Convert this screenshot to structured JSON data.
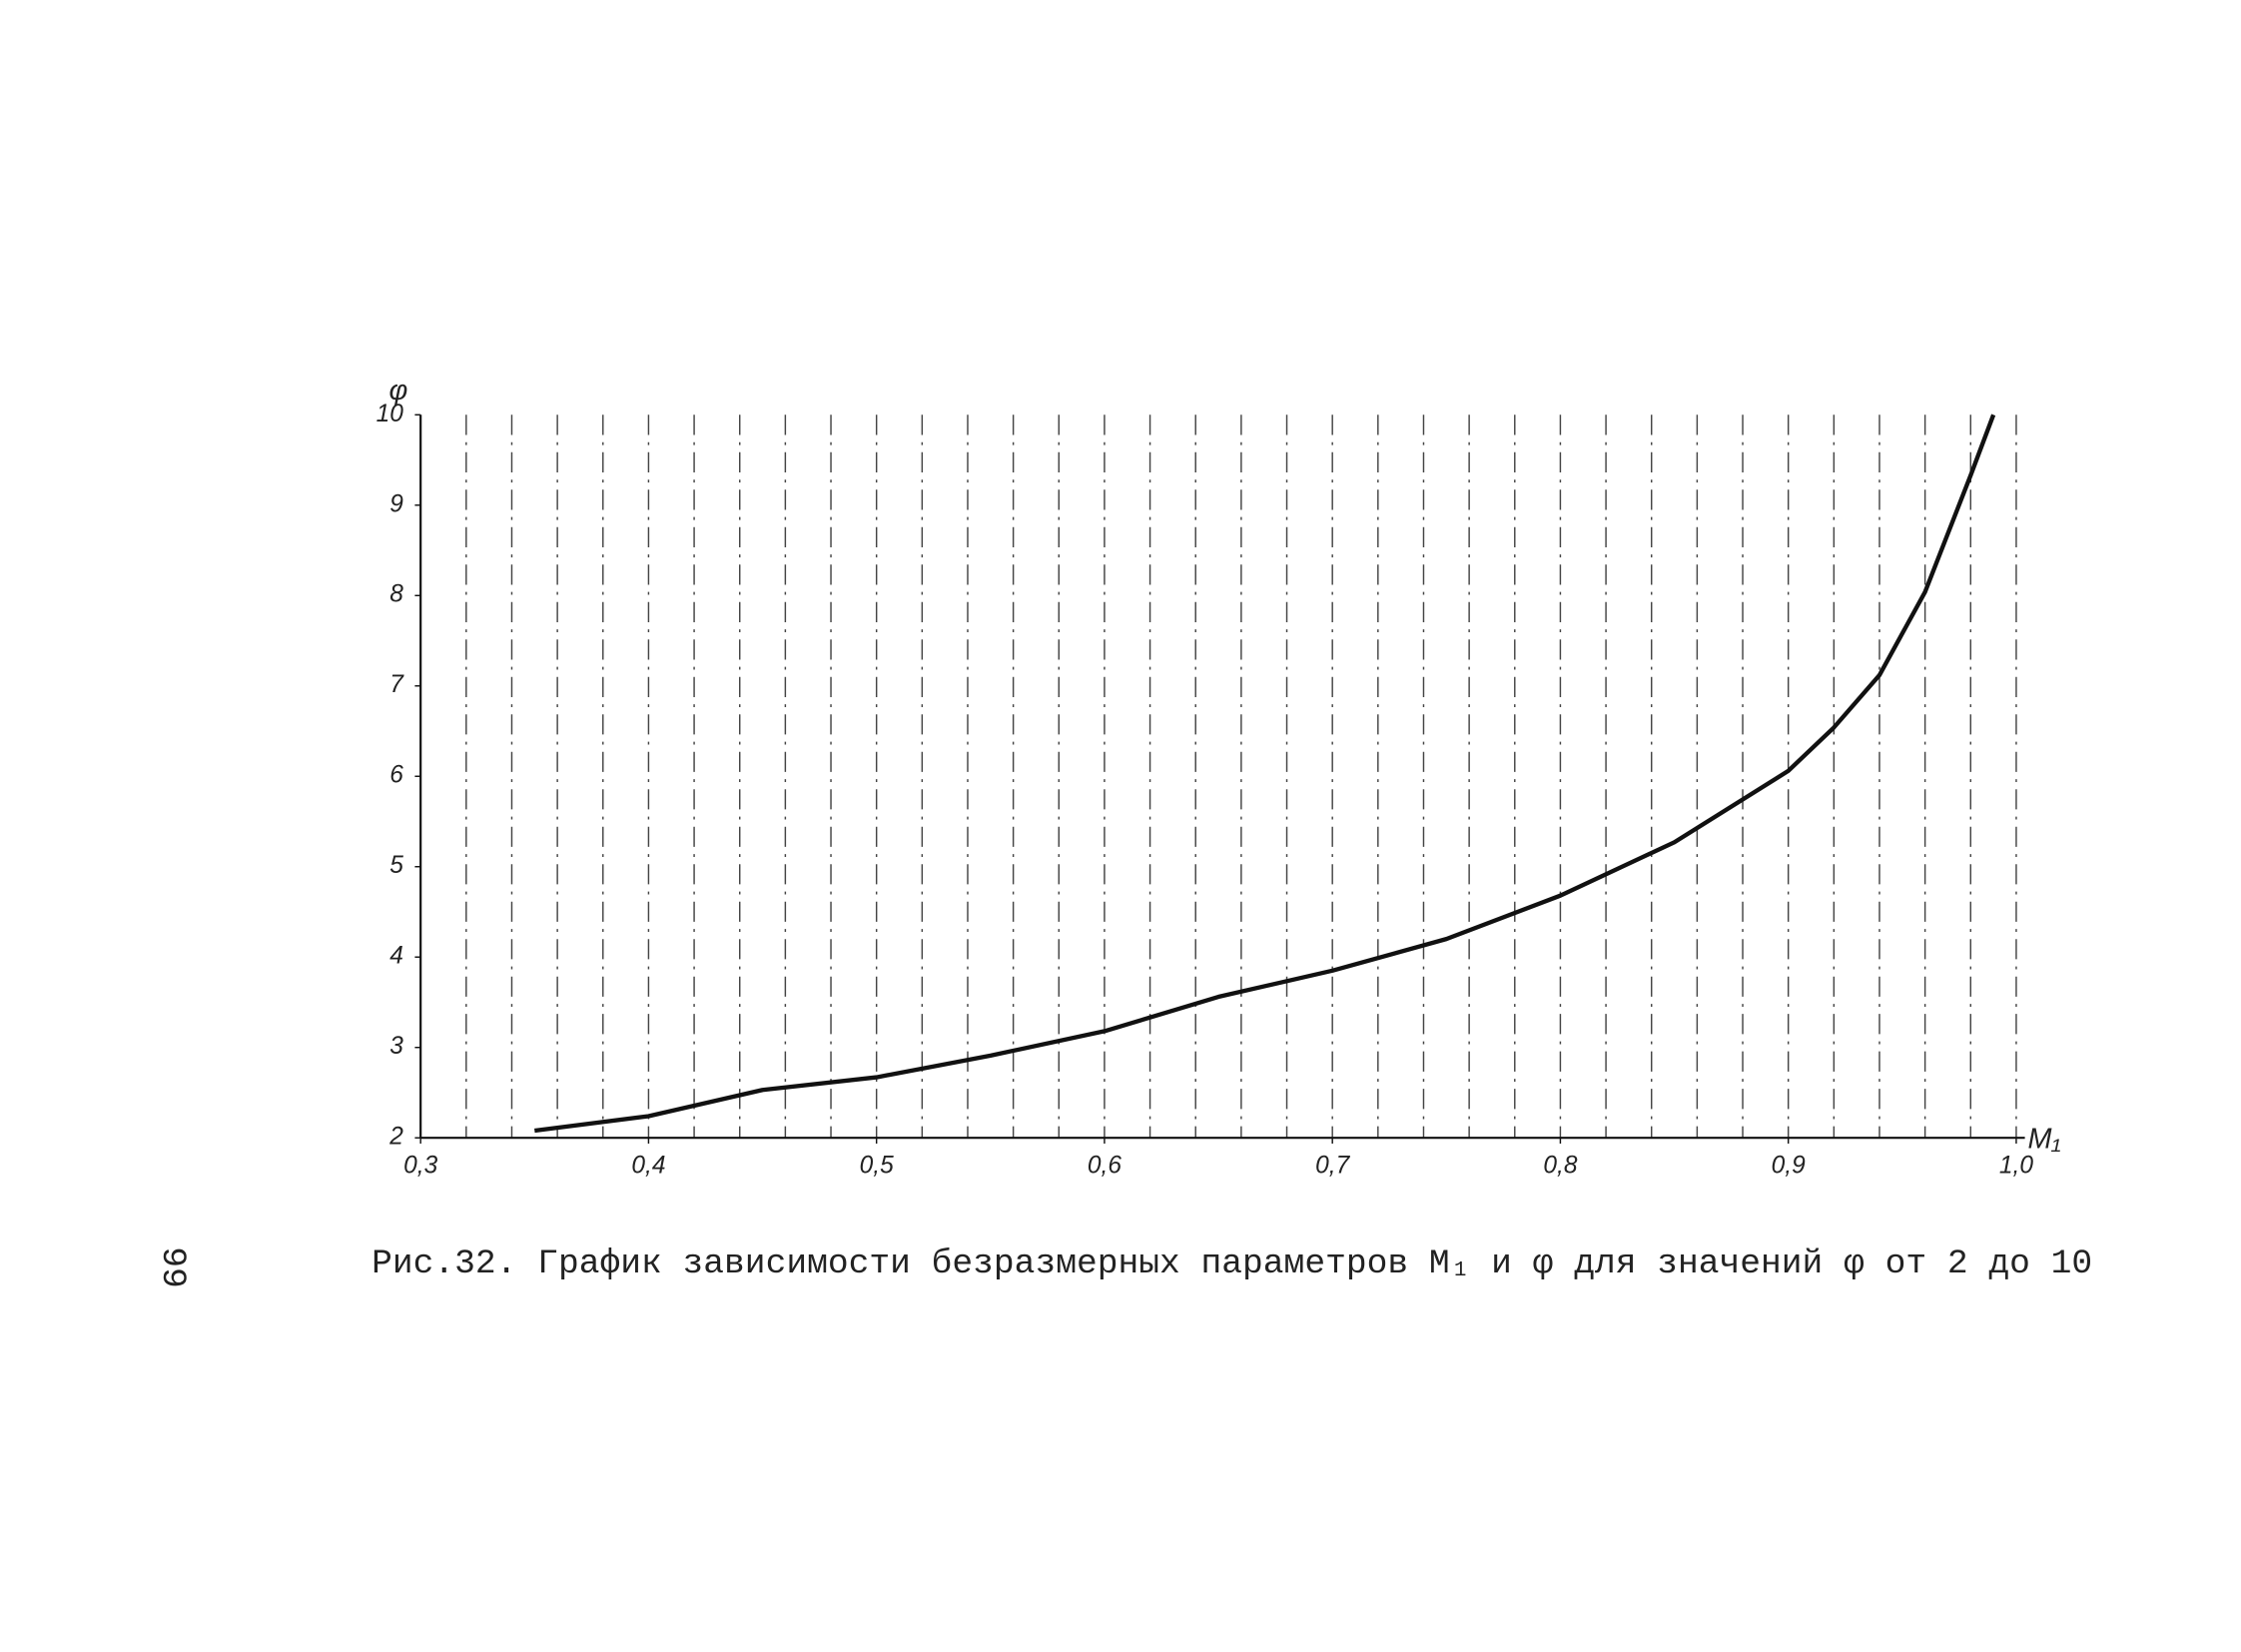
{
  "page_number": "99",
  "chart_data": {
    "type": "line",
    "caption": "Рис.32. График зависимости безразмерных параметров M₁ и φ для значений φ от 2 до 10",
    "x_label": "M₁",
    "y_label": "φ",
    "x": [
      0.35,
      0.4,
      0.45,
      0.5,
      0.55,
      0.6,
      0.65,
      0.7,
      0.75,
      0.8,
      0.85,
      0.9,
      0.92,
      0.94,
      0.96,
      0.98,
      0.99
    ],
    "values": [
      2.08,
      2.24,
      2.53,
      2.67,
      2.91,
      3.18,
      3.56,
      3.85,
      4.2,
      4.68,
      5.27,
      6.06,
      6.54,
      7.12,
      8.04,
      9.33,
      10.0
    ],
    "color": "#111111",
    "xlim": [
      0.3,
      1.0
    ],
    "ylim": [
      2,
      10
    ],
    "xticks": [
      {
        "value": 0.3,
        "label": "0,3"
      },
      {
        "value": 0.4,
        "label": "0,4"
      },
      {
        "value": 0.5,
        "label": "0,5"
      },
      {
        "value": 0.6,
        "label": "0,6"
      },
      {
        "value": 0.7,
        "label": "0,7"
      },
      {
        "value": 0.8,
        "label": "0,8"
      },
      {
        "value": 0.9,
        "label": "0,9"
      },
      {
        "value": 1.0,
        "label": "1,0"
      }
    ],
    "yticks": [
      2,
      3,
      4,
      5,
      6,
      7,
      8,
      9,
      10
    ],
    "x_gridlines": [
      0.32,
      0.34,
      0.36,
      0.38,
      0.4,
      0.42,
      0.44,
      0.46,
      0.48,
      0.5,
      0.52,
      0.54,
      0.56,
      0.58,
      0.6,
      0.62,
      0.64,
      0.66,
      0.68,
      0.7,
      0.72,
      0.74,
      0.76,
      0.78,
      0.8,
      0.82,
      0.84,
      0.86,
      0.88,
      0.9,
      0.92,
      0.94,
      0.96,
      0.98,
      1.0
    ]
  }
}
